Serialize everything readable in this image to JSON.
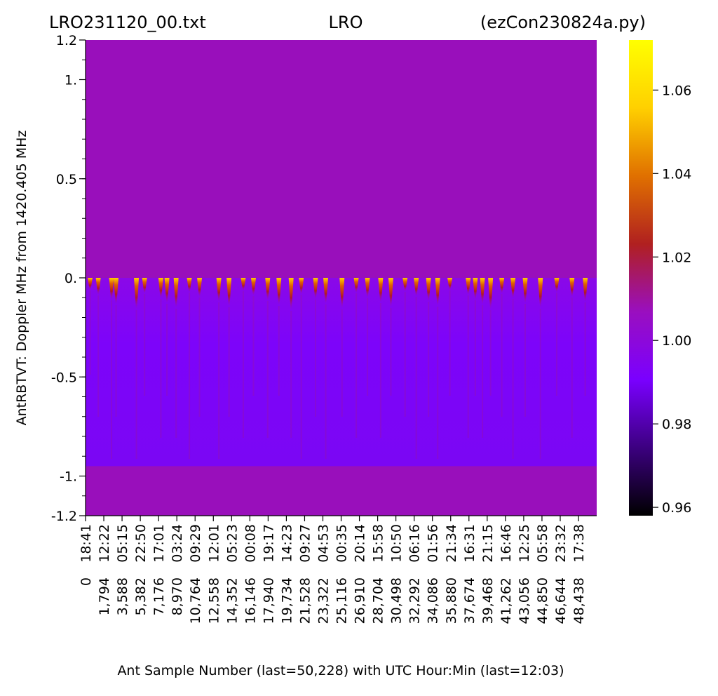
{
  "chart_data": {
    "type": "heatmap",
    "title_left": "LRO231120_00.txt",
    "title_center": "LRO",
    "title_right": "(ezCon230824a.py)",
    "ylabel": "AntRBTVT:  Doppler MHz from 1420.405 MHz",
    "xlabel": "Ant Sample Number (last=50,228) with UTC Hour:Min (last=12:03)",
    "ylim": [
      -1.2,
      1.2
    ],
    "y_ticks": [
      {
        "value": 1.2,
        "label": "1.2"
      },
      {
        "value": 1.0,
        "label": "1."
      },
      {
        "value": 0.5,
        "label": "0.5"
      },
      {
        "value": 0.0,
        "label": "0."
      },
      {
        "value": -0.5,
        "label": "-0.5"
      },
      {
        "value": -1.0,
        "label": "-1."
      },
      {
        "value": -1.2,
        "label": "-1.2"
      }
    ],
    "y_minor_step": 0.1,
    "xlim": [
      0,
      50228
    ],
    "x_ticks": [
      {
        "value": 0,
        "sample": "0",
        "time": "18:41"
      },
      {
        "value": 1794,
        "sample": "1,794",
        "time": "12:22"
      },
      {
        "value": 3588,
        "sample": "3,588",
        "time": "05:15"
      },
      {
        "value": 5382,
        "sample": "5,382",
        "time": "22:50"
      },
      {
        "value": 7176,
        "sample": "7,176",
        "time": "17:01"
      },
      {
        "value": 8970,
        "sample": "8,970",
        "time": "03:24"
      },
      {
        "value": 10764,
        "sample": "10,764",
        "time": "09:29"
      },
      {
        "value": 12558,
        "sample": "12,558",
        "time": "12:01"
      },
      {
        "value": 14352,
        "sample": "14,352",
        "time": "05:23"
      },
      {
        "value": 16146,
        "sample": "16,146",
        "time": "00:08"
      },
      {
        "value": 17940,
        "sample": "17,940",
        "time": "19:17"
      },
      {
        "value": 19734,
        "sample": "19,734",
        "time": "14:23"
      },
      {
        "value": 21528,
        "sample": "21,528",
        "time": "09:27"
      },
      {
        "value": 23322,
        "sample": "23,322",
        "time": "04:53"
      },
      {
        "value": 25116,
        "sample": "25,116",
        "time": "00:35"
      },
      {
        "value": 26910,
        "sample": "26,910",
        "time": "20:14"
      },
      {
        "value": 28704,
        "sample": "28,704",
        "time": "15:58"
      },
      {
        "value": 30498,
        "sample": "30,498",
        "time": "10:50"
      },
      {
        "value": 32292,
        "sample": "32,292",
        "time": "06:16"
      },
      {
        "value": 34086,
        "sample": "34,086",
        "time": "01:56"
      },
      {
        "value": 35880,
        "sample": "35,880",
        "time": "21:34"
      },
      {
        "value": 37674,
        "sample": "37,674",
        "time": "16:31"
      },
      {
        "value": 39468,
        "sample": "39,468",
        "time": "21:15"
      },
      {
        "value": 41262,
        "sample": "41,262",
        "time": "16:46"
      },
      {
        "value": 43056,
        "sample": "43,056",
        "time": "12:25"
      },
      {
        "value": 44850,
        "sample": "44,850",
        "time": "05:58"
      },
      {
        "value": 46644,
        "sample": "46,644",
        "time": "23:32"
      },
      {
        "value": 48438,
        "sample": "48,438",
        "time": "17:38"
      }
    ],
    "colorbar": {
      "min": 0.958,
      "max": 1.072,
      "ticks": [
        {
          "value": 0.96,
          "label": "0.96"
        },
        {
          "value": 0.98,
          "label": "0.98"
        },
        {
          "value": 1.0,
          "label": "1.00"
        },
        {
          "value": 1.02,
          "label": "1.02"
        },
        {
          "value": 1.04,
          "label": "1.04"
        },
        {
          "value": 1.06,
          "label": "1.06"
        }
      ],
      "colors": [
        "#000000",
        "#3c0080",
        "#7a00ff",
        "#9a0fbf",
        "#b02020",
        "#e07000",
        "#ffd000",
        "#ffff00"
      ]
    },
    "background_value": 1.0,
    "background_color": "#990fbb",
    "band": {
      "y_range": [
        -0.95,
        0.0
      ],
      "base_value": 0.983,
      "base_color": "#7d05f5"
    },
    "spikes_sample": [
      450,
      1250,
      2550,
      3000,
      5000,
      5800,
      7400,
      8000,
      8900,
      10200,
      11200,
      13100,
      14100,
      15500,
      16500,
      17900,
      19000,
      20200,
      21200,
      22600,
      23600,
      25200,
      26600,
      27700,
      29000,
      30000,
      31400,
      32500,
      33700,
      34600,
      35800,
      37600,
      38300,
      39000,
      39800,
      40900,
      42000,
      43200,
      44700,
      46300,
      47800,
      49100
    ]
  }
}
